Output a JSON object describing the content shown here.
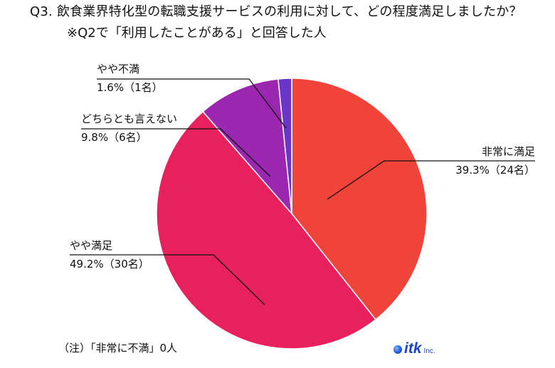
{
  "header": {
    "title": "Q3. 飲食業界特化型の転職支援サービスの利用に対して、どの程度満足しましたか？",
    "subtitle": "※Q2で「利用したことがある」と回答した人"
  },
  "chart_data": {
    "type": "pie",
    "title": "Q3. 飲食業界特化型の転職支援サービスの利用に対して、どの程度満足しましたか？",
    "subtitle": "※Q2で「利用したことがある」と回答した人",
    "slices": [
      {
        "label": "非常に満足",
        "percent": 39.3,
        "count": 24,
        "value_label": "39.3%（24名）",
        "color": "#f0433a"
      },
      {
        "label": "やや満足",
        "percent": 49.2,
        "count": 30,
        "value_label": "49.2%（30名）",
        "color": "#e8205e"
      },
      {
        "label": "どちらとも言えない",
        "percent": 9.8,
        "count": 6,
        "value_label": "9.8%（6名）",
        "color": "#9b27b0"
      },
      {
        "label": "やや不満",
        "percent": 1.6,
        "count": 1,
        "value_label": "1.6%（1名）",
        "color": "#6a35c8"
      }
    ],
    "note": "（注）「非常に不満」0人"
  },
  "footer": {
    "logo_text": "itk",
    "logo_sub": "Inc."
  }
}
